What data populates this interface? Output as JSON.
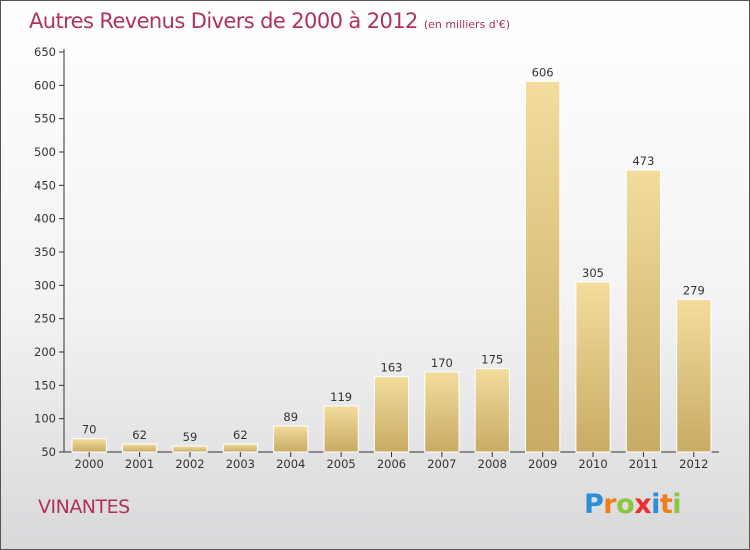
{
  "title": "Autres Revenus Divers de 2000 à 2012",
  "unit_label": "(en milliers d'€)",
  "commune": "VINANTES",
  "brand": {
    "letters": [
      {
        "char": "P",
        "color": "#2a8fd6"
      },
      {
        "char": "r",
        "color": "#f07d1a"
      },
      {
        "char": "o",
        "color": "#8cc63f"
      },
      {
        "char": "x",
        "color": "#e8312f"
      },
      {
        "char": "i",
        "color": "#2a8fd6"
      },
      {
        "char": "t",
        "color": "#f07d1a"
      },
      {
        "char": "i",
        "color": "#8cc63f"
      }
    ]
  },
  "colors": {
    "title": "#b0325a",
    "bar_light": "#f3dc9d",
    "bar_dark": "#c8ab64",
    "axis": "#333333",
    "text": "#333333"
  },
  "chart_data": {
    "type": "bar",
    "categories": [
      "2000",
      "2001",
      "2002",
      "2003",
      "2004",
      "2005",
      "2006",
      "2007",
      "2008",
      "2009",
      "2010",
      "2011",
      "2012"
    ],
    "values": [
      70,
      62,
      59,
      62,
      89,
      119,
      163,
      170,
      175,
      606,
      305,
      473,
      279
    ],
    "data_labels": [
      "70",
      "62",
      "59",
      "62",
      "89",
      "119",
      "163",
      "170",
      "175",
      "606",
      "305",
      "473",
      "279"
    ],
    "ylim": [
      50,
      650
    ],
    "yticks": [
      50,
      100,
      150,
      200,
      250,
      300,
      350,
      400,
      450,
      500,
      550,
      600,
      650
    ],
    "xlabel": "",
    "ylabel": "",
    "grid": false,
    "legend": "none"
  }
}
